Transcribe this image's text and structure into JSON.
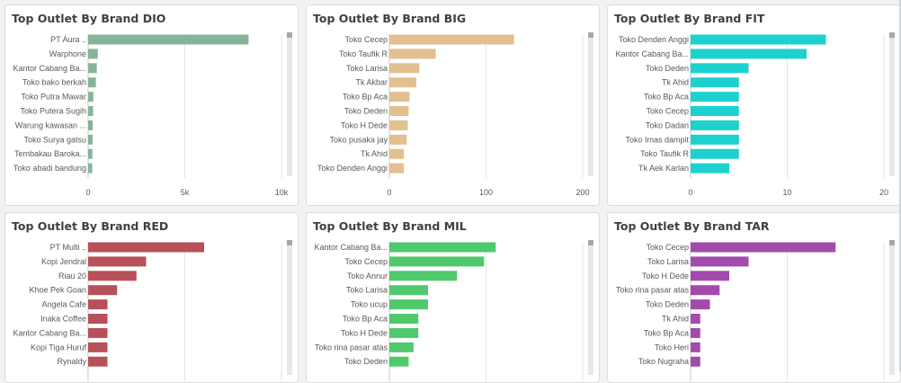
{
  "chart_data": [
    {
      "type": "bar",
      "title": "Top Outlet By Brand DIO",
      "color": "#86b49a",
      "categories": [
        "PT Aura ..",
        "Warphone",
        "Kantor Cabang Ba...",
        "Toko bako berkah",
        "Toko Putra Mawar",
        "Toko Putera Sugih",
        "Warung kawasan ...",
        "Toko Surya gatsu",
        "Tembakau Baroka...",
        "Toko abadi bandung"
      ],
      "values": [
        8300,
        500,
        450,
        400,
        270,
        260,
        240,
        230,
        220,
        210
      ],
      "xlim": [
        0,
        10000
      ],
      "xticks": [
        0,
        5000,
        10000
      ],
      "xtick_labels": [
        "0",
        "5k",
        "10k"
      ],
      "orientation": "horizontal"
    },
    {
      "type": "bar",
      "title": "Top Outlet By Brand BIG",
      "color": "#e2c08f",
      "categories": [
        "Toko Cecep",
        "Toko Taufik R",
        "Toko Larisa",
        "Tk Akbar",
        "Toko Bp Aca",
        "Toko Deden",
        "Toko H Dede",
        "Toko pusaka jay",
        "Tk Ahid",
        "Toko Denden Anggi"
      ],
      "values": [
        129,
        48,
        31,
        28,
        21,
        20,
        19,
        18,
        15,
        15
      ],
      "xlim": [
        0,
        200
      ],
      "xticks": [
        0,
        100,
        200
      ],
      "xtick_labels": [
        "0",
        "100",
        "200"
      ],
      "orientation": "horizontal"
    },
    {
      "type": "bar",
      "title": "Top Outlet By Brand FIT",
      "color": "#1dd1cf",
      "categories": [
        "Toko Denden Anggi",
        "Kantor Cabang Ba...",
        "Toko Deden",
        "Tk Ahid",
        "Toko Bp Aca",
        "Toko Cecep",
        "Toko Dadan",
        "Toko Imas dampit",
        "Toko Taufik R",
        "Tk Aek Karlan"
      ],
      "values": [
        14,
        12,
        6,
        5,
        5,
        5,
        5,
        5,
        5,
        4
      ],
      "xlim": [
        0,
        20
      ],
      "xticks": [
        0,
        10,
        20
      ],
      "xtick_labels": [
        "0",
        "10",
        "20"
      ],
      "orientation": "horizontal"
    },
    {
      "type": "bar",
      "title": "Top Outlet By Brand RED",
      "color": "#b8505a",
      "categories": [
        "PT Multi ..",
        "Kopi Jendral",
        "Riau 20",
        "Khoe Pek Goan",
        "Angela Cafe",
        "Inaka Coffee",
        "Kantor Cabang Ba...",
        "Kopi Tiga Huruf",
        "Rynaldy"
      ],
      "values": [
        12,
        6,
        5,
        3,
        2,
        2,
        2,
        2,
        2
      ],
      "xlim": [
        0,
        20
      ],
      "orientation": "horizontal"
    },
    {
      "type": "bar",
      "title": "Top Outlet By Brand MIL",
      "color": "#4fc96c",
      "categories": [
        "Kantor Cabang Ba...",
        "Toko Cecep",
        "Toko Annur",
        "Toko Larisa",
        "Toko ucup",
        "Toko Bp Aca",
        "Toko H Dede",
        "Toko rina pasar atas",
        "Toko Deden"
      ],
      "values": [
        11,
        9.8,
        7,
        4,
        4,
        3,
        3,
        2.5,
        2
      ],
      "xlim": [
        0,
        20
      ],
      "orientation": "horizontal"
    },
    {
      "type": "bar",
      "title": "Top Outlet By Brand TAR",
      "color": "#a34aad",
      "categories": [
        "Toko Cecep",
        "Toko Larisa",
        "Toko H Dede",
        "Toko rina pasar atas",
        "Toko Deden",
        "Tk Ahid",
        "Toko Bp Aca",
        "Toko Heri",
        "Toko Nugraha"
      ],
      "values": [
        15,
        6,
        4,
        3,
        2,
        1,
        1,
        1,
        1
      ],
      "xlim": [
        0,
        20
      ],
      "orientation": "horizontal"
    }
  ]
}
